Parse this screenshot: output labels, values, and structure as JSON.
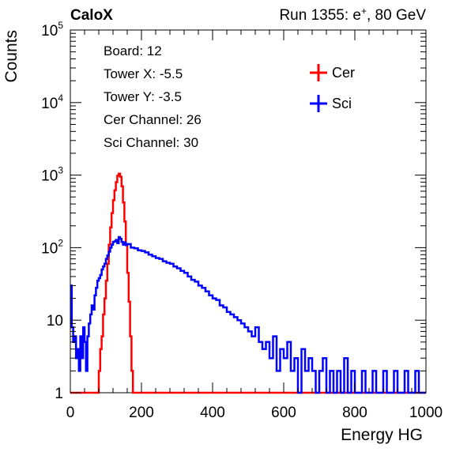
{
  "header": {
    "experiment": "CaloX",
    "run_info_prefix": "Run 1355: e",
    "run_info_sup": "+",
    "run_info_suffix": ", 80 GeV"
  },
  "info_box": {
    "lines": [
      "Board: 12",
      "Tower X: -5.5",
      "Tower Y: -3.5",
      "Cer Channel: 26",
      "Sci Channel: 30"
    ]
  },
  "chart_data": {
    "type": "line",
    "step": true,
    "xlabel": "Energy HG",
    "ylabel": "Counts",
    "xlim": [
      0,
      1000
    ],
    "ylim": [
      1,
      100000
    ],
    "yscale": "log",
    "grid": false,
    "legend_placement": "top-right",
    "x_ticks": [
      {
        "value": 0,
        "label": "0"
      },
      {
        "value": 200,
        "label": "200"
      },
      {
        "value": 400,
        "label": "400"
      },
      {
        "value": 600,
        "label": "600"
      },
      {
        "value": 800,
        "label": "800"
      },
      {
        "value": 1000,
        "label": "1000"
      }
    ],
    "y_ticks": [
      {
        "value": 1,
        "base": "1",
        "exp": ""
      },
      {
        "value": 10,
        "base": "10",
        "exp": ""
      },
      {
        "value": 100,
        "base": "10",
        "exp": "2"
      },
      {
        "value": 1000,
        "base": "10",
        "exp": "3"
      },
      {
        "value": 10000,
        "base": "10",
        "exp": "4"
      },
      {
        "value": 100000,
        "base": "10",
        "exp": "5"
      }
    ],
    "series": [
      {
        "name": "Cer",
        "color": "#ff0000",
        "x": [
          0,
          20,
          40,
          60,
          70,
          76,
          80,
          84,
          88,
          92,
          96,
          100,
          104,
          108,
          112,
          116,
          120,
          124,
          128,
          132,
          136,
          140,
          144,
          148,
          152,
          156,
          160,
          164,
          168,
          172,
          176,
          180,
          190,
          200,
          300,
          400,
          500,
          600,
          700,
          800,
          900,
          1000
        ],
        "y": [
          0,
          0,
          0,
          0,
          0,
          1,
          2,
          4,
          6,
          12,
          20,
          35,
          60,
          110,
          190,
          300,
          450,
          620,
          800,
          980,
          1050,
          950,
          700,
          420,
          230,
          110,
          45,
          18,
          6,
          2,
          1,
          0,
          0,
          0,
          0,
          0,
          0,
          0,
          0,
          0,
          0,
          0
        ]
      },
      {
        "name": "Sci",
        "color": "#0000ff",
        "x": [
          0,
          4,
          8,
          12,
          16,
          20,
          24,
          28,
          32,
          36,
          40,
          44,
          48,
          52,
          56,
          60,
          64,
          68,
          72,
          76,
          80,
          84,
          88,
          92,
          96,
          100,
          104,
          108,
          112,
          116,
          120,
          124,
          128,
          132,
          136,
          140,
          144,
          148,
          152,
          156,
          160,
          170,
          180,
          190,
          200,
          210,
          220,
          230,
          240,
          250,
          260,
          270,
          280,
          290,
          300,
          310,
          320,
          330,
          340,
          350,
          360,
          370,
          380,
          390,
          400,
          410,
          420,
          430,
          440,
          450,
          460,
          470,
          480,
          490,
          500,
          510,
          520,
          530,
          540,
          550,
          560,
          570,
          580,
          590,
          600,
          610,
          620,
          630,
          640,
          650,
          660,
          670,
          680,
          690,
          700,
          710,
          720,
          730,
          740,
          750,
          760,
          770,
          780,
          790,
          800,
          810,
          820,
          830,
          840,
          850,
          860,
          870,
          880,
          890,
          900,
          910,
          920,
          930,
          940,
          950,
          960,
          970,
          980,
          990
        ],
        "y": [
          30,
          8,
          5,
          6,
          3,
          4,
          2,
          6,
          3,
          8,
          5,
          2,
          6,
          9,
          12,
          16,
          14,
          22,
          28,
          35,
          38,
          42,
          50,
          55,
          60,
          70,
          78,
          88,
          100,
          110,
          120,
          122,
          128,
          115,
          140,
          132,
          120,
          110,
          118,
          108,
          112,
          100,
          98,
          92,
          90,
          86,
          80,
          76,
          72,
          70,
          65,
          62,
          60,
          55,
          52,
          48,
          45,
          40,
          36,
          34,
          30,
          28,
          25,
          22,
          20,
          19,
          16,
          15,
          13,
          12,
          11,
          10,
          9,
          8,
          7,
          6,
          8,
          5,
          4,
          5,
          3,
          6,
          2,
          4,
          3,
          5,
          2,
          3,
          1,
          4,
          2,
          3,
          2,
          1,
          2,
          3,
          1,
          2,
          1,
          2,
          1,
          3,
          1,
          2,
          1,
          1,
          2,
          1,
          1,
          2,
          1,
          1,
          2,
          1,
          1,
          2,
          1,
          1,
          2,
          1,
          1,
          2,
          1,
          1
        ]
      }
    ]
  }
}
